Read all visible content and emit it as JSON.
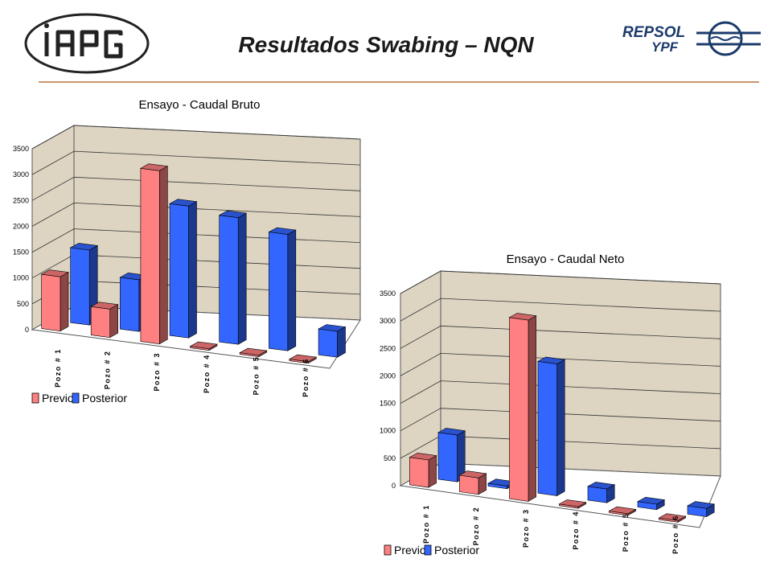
{
  "slide": {
    "title": "Resultados Swabing – NQN",
    "logo_left_text": "IAPG",
    "logo_right_text_1": "REPSOL",
    "logo_right_text_2": "YPF"
  },
  "colors": {
    "previo": "#ff8080",
    "posterior": "#3366ff",
    "wall": "#ddd5c2",
    "floor": "#ffffff"
  },
  "chart_data": [
    {
      "type": "bar",
      "title": "Ensayo - Caudal Bruto",
      "categories": [
        "Pozo # 1",
        "Pozo # 2",
        "Pozo # 3",
        "Pozo # 4",
        "Pozo # 5",
        "Pozo # 6"
      ],
      "yticks": [
        "0",
        "500",
        "1000",
        "1500",
        "2000",
        "2500",
        "3000",
        "3500"
      ],
      "ylim": [
        0,
        3500
      ],
      "series": [
        {
          "name": "Previo",
          "values": [
            1050,
            550,
            3350,
            0,
            0,
            0
          ]
        },
        {
          "name": "Posterior",
          "values": [
            1450,
            1000,
            2550,
            2450,
            2250,
            500
          ]
        }
      ],
      "legend": "bottom-left",
      "grid": true
    },
    {
      "type": "bar",
      "title": "Ensayo - Caudal Neto",
      "categories": [
        "Pozo # 1",
        "Pozo # 2",
        "Pozo # 3",
        "Pozo # 4",
        "Pozo # 5",
        "Pozo # 6"
      ],
      "yticks": [
        "0",
        "500",
        "1000",
        "1500",
        "2000",
        "2500",
        "3000",
        "3500"
      ],
      "ylim": [
        0,
        3500
      ],
      "series": [
        {
          "name": "Previo",
          "values": [
            500,
            300,
            3300,
            0,
            0,
            0
          ]
        },
        {
          "name": "Posterior",
          "values": [
            850,
            50,
            2400,
            250,
            100,
            150
          ]
        }
      ],
      "legend": "bottom-left",
      "grid": true
    }
  ]
}
